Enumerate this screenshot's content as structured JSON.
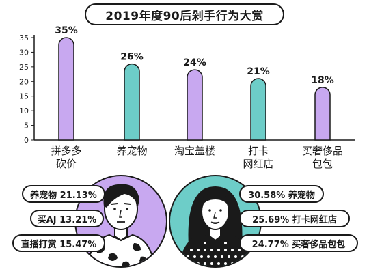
{
  "title": "2019年度90后剁手行为大赏",
  "colors": {
    "purple": "#c8a8f0",
    "teal": "#6dcdc8",
    "outline": "#1a1a1a"
  },
  "chart_data": {
    "type": "bar",
    "title": "2019年度90后剁手行为大赏",
    "xlabel": "",
    "ylabel": "",
    "ylim": [
      0,
      35
    ],
    "yticks": [
      0,
      5,
      10,
      15,
      20,
      25,
      30,
      35
    ],
    "grid": false,
    "categories": [
      [
        "拼多多",
        "砍价"
      ],
      [
        "养宠物"
      ],
      [
        "淘宝盖楼"
      ],
      [
        "打卡",
        "网红店"
      ],
      [
        "买奢侈品",
        "包包"
      ]
    ],
    "values": [
      35,
      26,
      24,
      21,
      18
    ],
    "value_labels": [
      "35%",
      "26%",
      "24%",
      "21%",
      "18%"
    ],
    "bar_colors": [
      "#c8a8f0",
      "#6dcdc8",
      "#c8a8f0",
      "#6dcdc8",
      "#c8a8f0"
    ]
  },
  "male": {
    "icon": "man-avatar-icon",
    "circle_color": "#c8a8f0",
    "labels": [
      "养宠物 21.13%",
      "买AJ 13.21%",
      "直播打赏 15.47%"
    ]
  },
  "female": {
    "icon": "woman-avatar-icon",
    "circle_color": "#6dcdc8",
    "labels": [
      "30.58% 养宠物",
      "25.69% 打卡网红店",
      "24.77% 买奢侈品包包"
    ]
  }
}
